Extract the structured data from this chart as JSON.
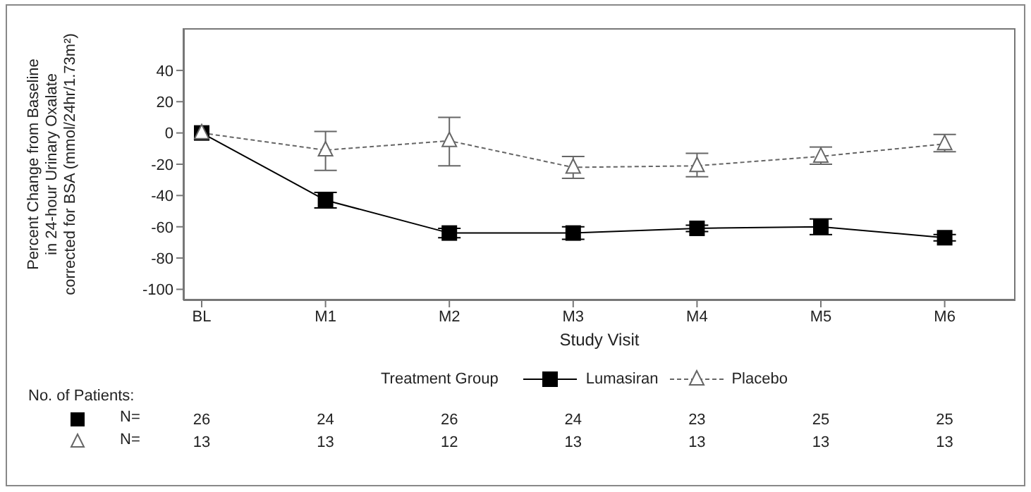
{
  "chart_data": {
    "type": "line",
    "ylabel": "Percent Change from Baseline\nin 24-hour Urinary Oxalate\ncorrected for BSA (mmol/24hr/1.73m²)",
    "xlabel": "Study Visit",
    "categories": [
      "BL",
      "M1",
      "M2",
      "M3",
      "M4",
      "M5",
      "M6"
    ],
    "ylim": [
      -107,
      67
    ],
    "yticks": [
      -100,
      -80,
      -60,
      -40,
      -20,
      0,
      20,
      40
    ],
    "legend": "bottom",
    "legend_title": "Treatment Group",
    "series": [
      {
        "name": "Lumasiran",
        "color": "#000000",
        "marker": "square",
        "line_style": "solid",
        "values": [
          0,
          -43,
          -64,
          -64,
          -61,
          -60,
          -67
        ],
        "errors": [
          null,
          5,
          3,
          4,
          2,
          5,
          2
        ]
      },
      {
        "name": "Placebo",
        "color": "#666666",
        "marker": "triangle",
        "line_style": "dashed",
        "values": [
          0,
          -11,
          -5,
          -22,
          -21,
          -15,
          -7
        ],
        "errors": [
          null,
          [
            -24,
            1
          ],
          [
            -21,
            10
          ],
          [
            -29,
            -15
          ],
          [
            -28,
            -13
          ],
          [
            -20,
            -9
          ],
          [
            -12,
            -1
          ]
        ]
      }
    ],
    "annotations": [
      "No. of Patients:",
      {
        "text": "N= 26 24 26 24 23 25 25"
      },
      {
        "text": "N= 13 13 12 13 13 13 13"
      }
    ]
  }
}
